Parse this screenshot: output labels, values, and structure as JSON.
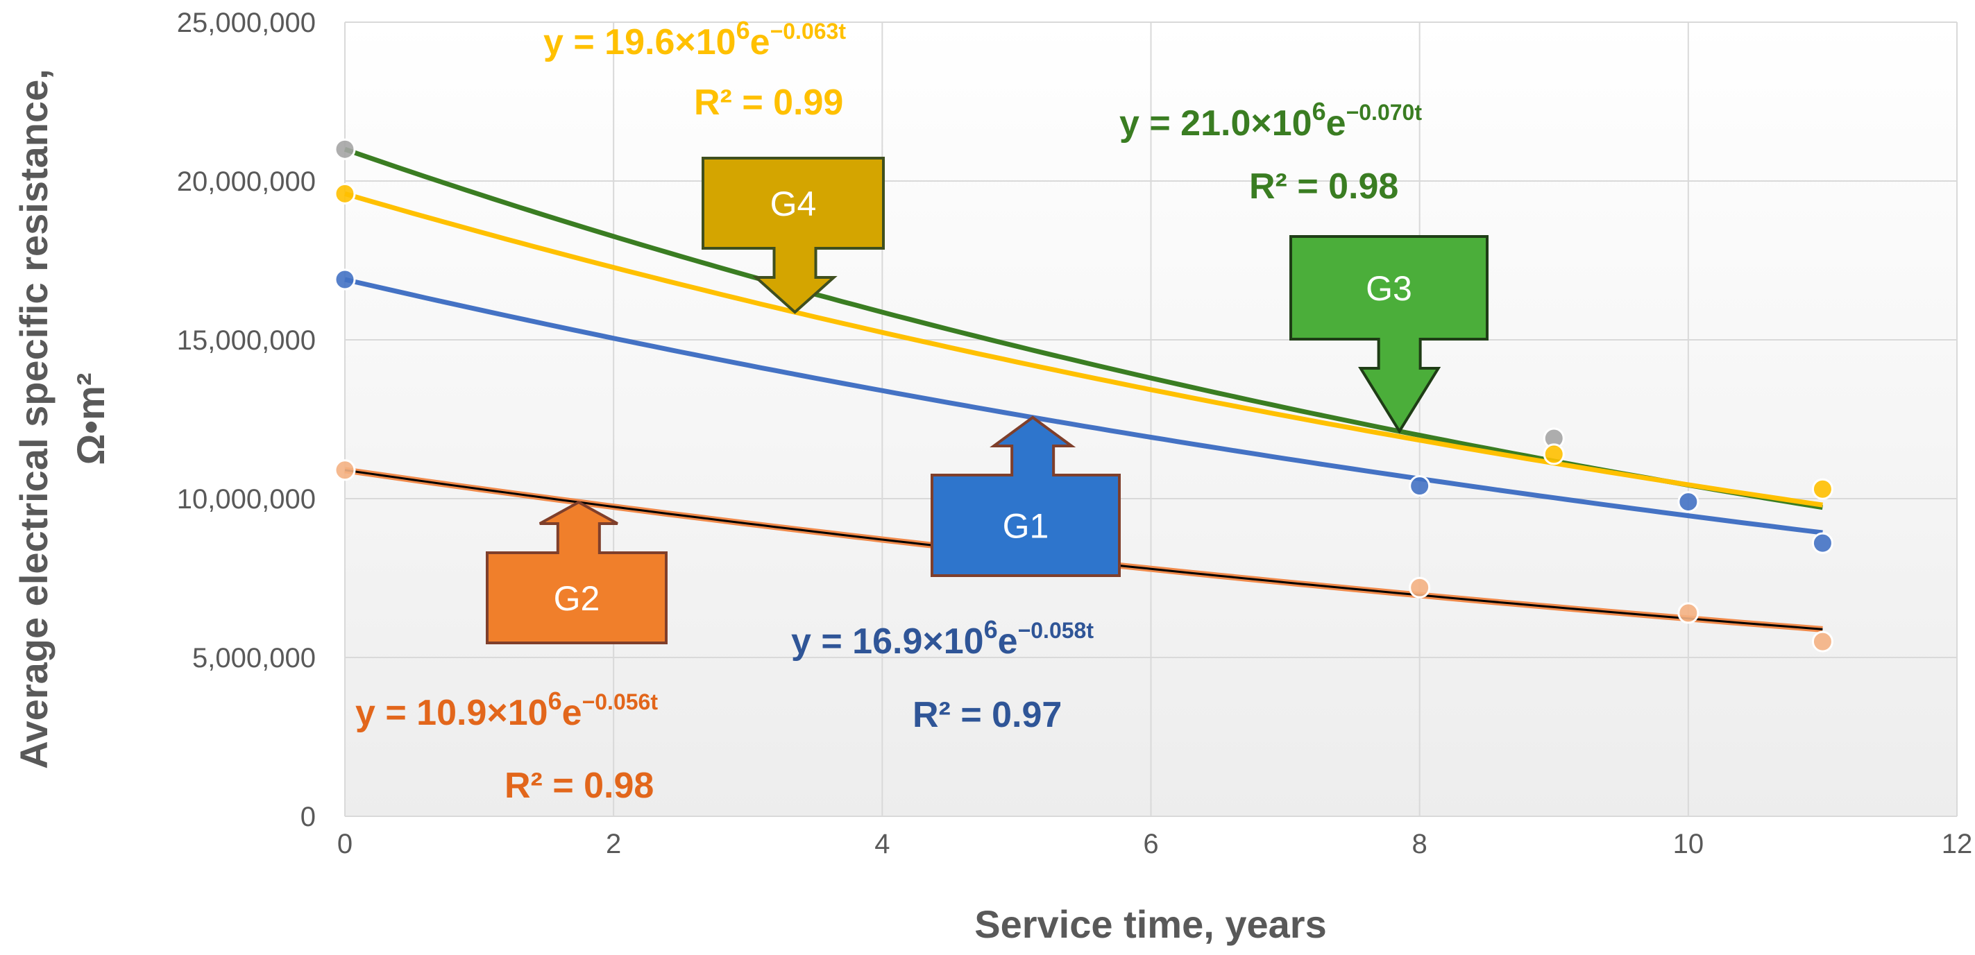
{
  "chart_data": {
    "type": "scatter",
    "xlabel": "Service time, years",
    "ylabel_line1": "Average electrical specific resistance,",
    "ylabel_line2": "Ω•m²",
    "xlim": [
      0,
      12
    ],
    "ylim": [
      0,
      25000000
    ],
    "xticks": [
      0,
      2,
      4,
      6,
      8,
      10,
      12
    ],
    "xtick_labels": [
      "0",
      "2",
      "4",
      "6",
      "8",
      "10",
      "12"
    ],
    "yticks": [
      0,
      5000000,
      10000000,
      15000000,
      20000000,
      25000000
    ],
    "ytick_labels": [
      "0",
      "5,000,000",
      "10,000,000",
      "15,000,000",
      "20,000,000",
      "25,000,000"
    ],
    "grid": true,
    "series": [
      {
        "name": "G1",
        "color": "#4472C4",
        "trend_color": "#4472C4",
        "x": [
          0,
          8,
          10,
          11
        ],
        "y": [
          16900000,
          10400000,
          9900000,
          8600000
        ],
        "fit": {
          "a": 16900000,
          "b": -0.058
        },
        "equation": {
          "base": "y = 16.9×10",
          "exp1": "6",
          "mid": "e",
          "exp2": "−0.058t"
        },
        "r2": "R² = 0.97",
        "eq_color": "#2F5597",
        "callout": {
          "label": "G1",
          "fill": "#2E75CC",
          "stroke": "#7F3F2B",
          "arrow": "up"
        }
      },
      {
        "name": "G2",
        "color": "#F4B183",
        "trend_color": "#000000",
        "x": [
          0,
          8,
          10,
          11
        ],
        "y": [
          10900000,
          7200000,
          6400000,
          5500000
        ],
        "fit": {
          "a": 10900000,
          "b": -0.056
        },
        "equation": {
          "base": "y = 10.9×10",
          "exp1": "6",
          "mid": "e",
          "exp2": "−0.056t"
        },
        "r2": "R² = 0.98",
        "eq_color": "#E2661B",
        "callout": {
          "label": "G2",
          "fill": "#F07F2B",
          "stroke": "#7F3F2B",
          "arrow": "up"
        }
      },
      {
        "name": "G3",
        "color": "#A5A5A5",
        "trend_color": "#3A7D22",
        "x": [
          0,
          9
        ],
        "y": [
          21000000,
          11900000
        ],
        "fit": {
          "a": 21000000,
          "b": -0.07
        },
        "equation": {
          "base": "y = 21.0×10",
          "exp1": "6",
          "mid": "e",
          "exp2": "−0.070t"
        },
        "r2": "R² = 0.98",
        "eq_color": "#3A7D22",
        "callout": {
          "label": "G3",
          "fill": "#4BAE3A",
          "stroke": "#1F3D16",
          "arrow": "down"
        }
      },
      {
        "name": "G4",
        "color": "#FFC000",
        "trend_color": "#FFC000",
        "x": [
          0,
          9,
          11
        ],
        "y": [
          19600000,
          11400000,
          10300000
        ],
        "fit": {
          "a": 19600000,
          "b": -0.063
        },
        "equation": {
          "base": "y = 19.6×10",
          "exp1": "6",
          "mid": "e",
          "exp2": "−0.063t"
        },
        "r2": "R² = 0.99",
        "eq_color": "#FFC000",
        "callout": {
          "label": "G4",
          "fill": "#D4A500",
          "stroke": "#3F4F1F",
          "arrow": "down"
        }
      }
    ]
  }
}
